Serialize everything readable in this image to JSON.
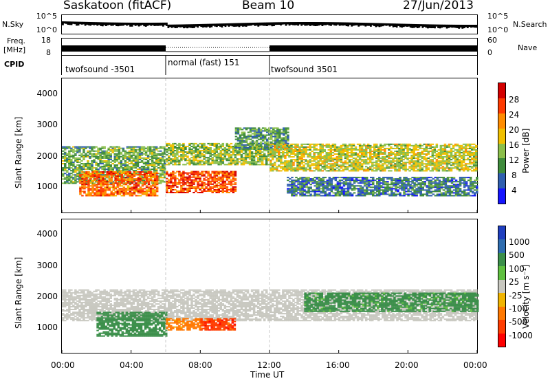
{
  "header": {
    "station": "Saskatoon (fitACF)",
    "beam": "Beam 10",
    "date": "27/Jun/2013"
  },
  "top_panels": {
    "nsky_label": "N.Sky",
    "nsearch_label": "N.Search",
    "freq_label": "Freq.",
    "freq_unit": "[MHz]",
    "nave_label": "Nave",
    "cpid_label": "CPID",
    "noise_ticks_left": [
      "10^5",
      "10^0"
    ],
    "noise_ticks_right": [
      "10^5",
      "10^0"
    ],
    "freq_ticks": [
      "18",
      "8"
    ],
    "nave_ticks": [
      "60",
      "0"
    ],
    "cpid_segments": [
      "twofsound -3501",
      "normal (fast) 151",
      "twofsound 3501"
    ]
  },
  "chart_data": [
    {
      "type": "heatmap",
      "title": "",
      "ylabel": "Slant Range [km]",
      "xlabel": "",
      "ylim": [
        180,
        4500
      ],
      "yticks": [
        "4000",
        "3000",
        "2000",
        "1000"
      ],
      "colorbar": {
        "label": "Power [dB]",
        "ticks": [
          "28",
          "24",
          "20",
          "16",
          "12",
          "8",
          "4"
        ],
        "colors": [
          "#d40000",
          "#ff3a00",
          "#ff8c00",
          "#f0c000",
          "#8bbf4a",
          "#3f8c3c",
          "#2f5fb0",
          "#1515ff"
        ]
      },
      "regions": [
        {
          "t0": 0.0,
          "t1": 6.0,
          "r0": 1100,
          "r1": 2300,
          "level": 14
        },
        {
          "t0": 1.0,
          "t1": 5.5,
          "r0": 700,
          "r1": 1500,
          "level": 26
        },
        {
          "t0": 6.0,
          "t1": 10.0,
          "r0": 800,
          "r1": 1500,
          "level": 28
        },
        {
          "t0": 6.0,
          "t1": 12.0,
          "r0": 1700,
          "r1": 2400,
          "level": 16
        },
        {
          "t0": 10.0,
          "t1": 13.0,
          "r0": 2200,
          "r1": 2900,
          "level": 12
        },
        {
          "t0": 12.0,
          "t1": 24.0,
          "r0": 1500,
          "r1": 2400,
          "level": 18
        },
        {
          "t0": 13.0,
          "t1": 24.0,
          "r0": 700,
          "r1": 1300,
          "level": 10
        }
      ]
    },
    {
      "type": "heatmap",
      "title": "",
      "ylabel": "Slant Range [km]",
      "xlabel": "Time UT",
      "ylim": [
        180,
        4500
      ],
      "yticks": [
        "4000",
        "3000",
        "2000",
        "1000"
      ],
      "xticks": [
        "00:00",
        "04:00",
        "08:00",
        "12:00",
        "16:00",
        "20:00",
        "00:00"
      ],
      "xlim_hours": [
        0,
        24
      ],
      "colorbar": {
        "label": "Velocity [m s⁻¹]",
        "ticks": [
          "1000",
          "500",
          "100",
          "25",
          "-25",
          "-100",
          "-500",
          "-1000"
        ],
        "colors": [
          "#1f3fbf",
          "#2e6db0",
          "#3b8f4a",
          "#5fc040",
          "#c8c8c0",
          "#f0b400",
          "#ff7800",
          "#ff3c00",
          "#ff0000"
        ]
      },
      "regions": [
        {
          "t0": 0.0,
          "t1": 24.0,
          "r0": 1200,
          "r1": 2200,
          "velocity": 0
        },
        {
          "t0": 2.0,
          "t1": 6.0,
          "r0": 700,
          "r1": 1500,
          "velocity": 150
        },
        {
          "t0": 6.0,
          "t1": 8.0,
          "r0": 900,
          "r1": 1300,
          "velocity": -100
        },
        {
          "t0": 8.0,
          "t1": 10.0,
          "r0": 900,
          "r1": 1300,
          "velocity": -500
        },
        {
          "t0": 14.0,
          "t1": 24.0,
          "r0": 1500,
          "r1": 2100,
          "velocity": 100
        }
      ]
    }
  ]
}
